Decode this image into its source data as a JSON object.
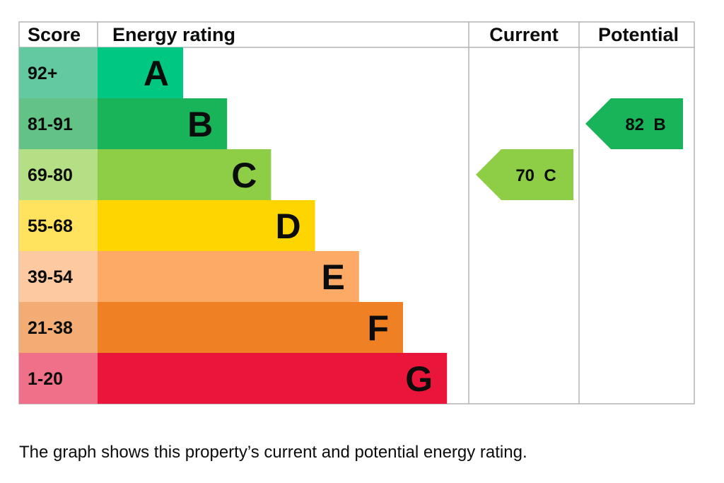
{
  "chart_data": {
    "type": "bar",
    "headers": {
      "score": "Score",
      "rating": "Energy rating",
      "current": "Current",
      "potential": "Potential"
    },
    "bands": [
      {
        "band": "A",
        "score": "92+",
        "color": "#00c781",
        "score_bg": "#62c9a0"
      },
      {
        "band": "B",
        "score": "81-91",
        "color": "#19b459",
        "score_bg": "#63c286"
      },
      {
        "band": "C",
        "score": "69-80",
        "color": "#8dce46",
        "score_bg": "#b4df85"
      },
      {
        "band": "D",
        "score": "55-68",
        "color": "#ffd500",
        "score_bg": "#ffe35e"
      },
      {
        "band": "E",
        "score": "39-54",
        "color": "#fcaa65",
        "score_bg": "#fdc9a0"
      },
      {
        "band": "F",
        "score": "21-38",
        "color": "#ef8023",
        "score_bg": "#f3ac73"
      },
      {
        "band": "G",
        "score": "1-20",
        "color": "#e9153b",
        "score_bg": "#f07089"
      }
    ],
    "current": {
      "value": 70,
      "band": "C",
      "label": "70  C"
    },
    "potential": {
      "value": 82,
      "band": "B",
      "label": "82  B"
    }
  },
  "caption": "The graph shows this property’s current and potential energy rating."
}
